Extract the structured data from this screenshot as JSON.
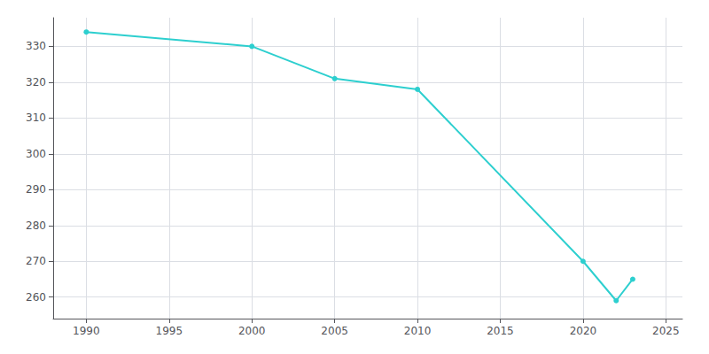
{
  "chart_data": {
    "type": "line",
    "x": [
      1990,
      2000,
      2005,
      2010,
      2020,
      2022,
      2023
    ],
    "values": [
      334,
      330,
      321,
      318,
      270,
      259,
      265
    ],
    "color": "#2dcfcf",
    "marker": "circle",
    "xlim": [
      1988,
      2026
    ],
    "xticks": [
      1990,
      1995,
      2000,
      2005,
      2010,
      2015,
      2020,
      2025
    ],
    "ylim": [
      254,
      338
    ],
    "yticks": [
      260,
      270,
      280,
      290,
      300,
      310,
      320,
      330
    ],
    "grid": true
  }
}
